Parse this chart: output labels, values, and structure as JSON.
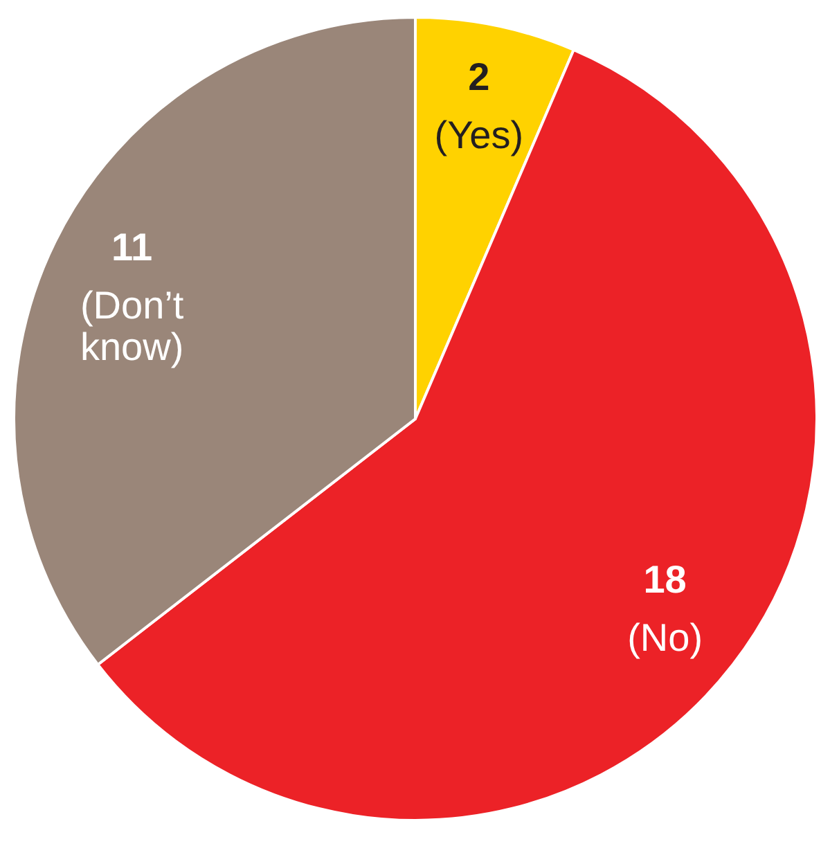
{
  "chart_data": {
    "type": "pie",
    "categories": [
      "(Yes)",
      "(No)",
      "(Don’t know)"
    ],
    "values": [
      2,
      18,
      11
    ],
    "colors": [
      "#ffd200",
      "#ec2227",
      "#9a8679"
    ],
    "data_labels": true,
    "legend": false
  }
}
